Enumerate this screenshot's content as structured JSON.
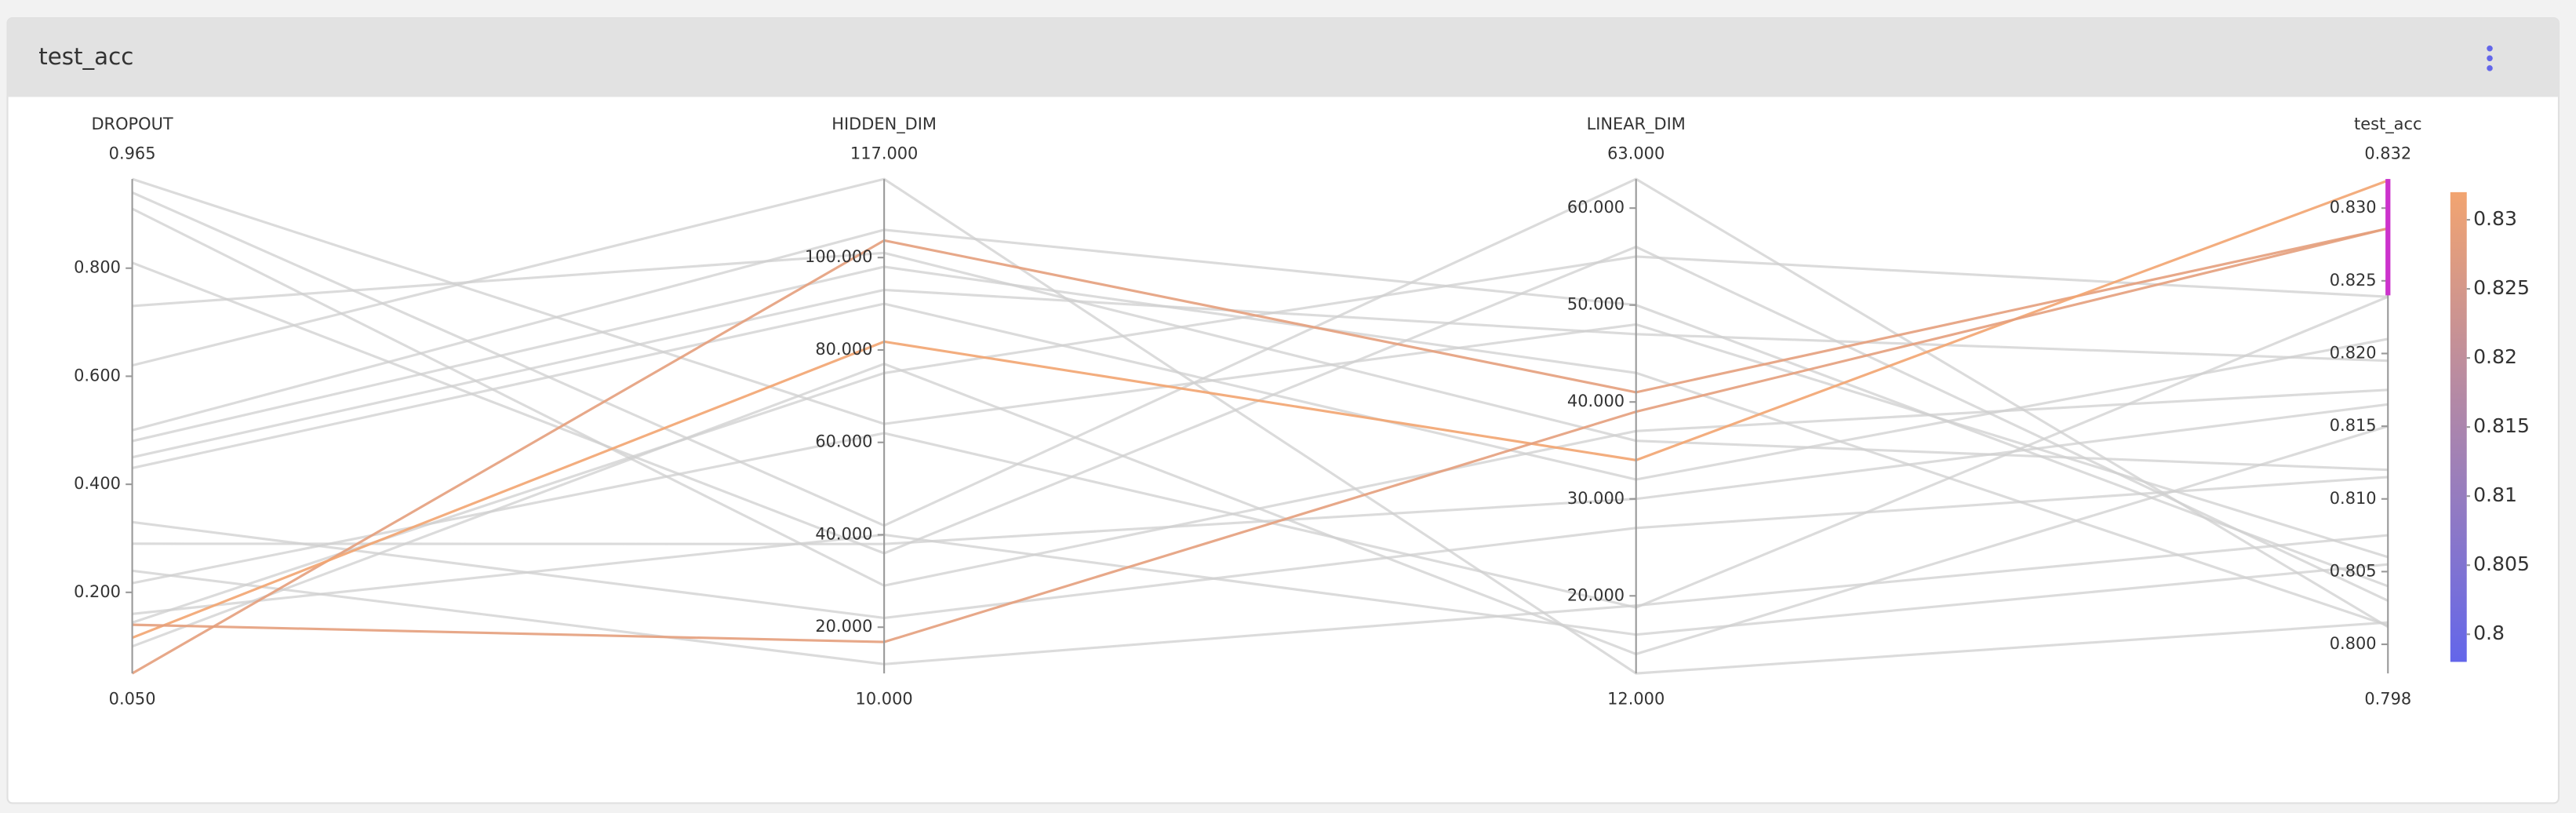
{
  "chart_data": {
    "type": "parallel_coordinates",
    "title": "test_acc",
    "axes": [
      {
        "name": "DROPOUT",
        "lim": [
          {
            "value": 0.05,
            "label": "0.050"
          },
          {
            "value": 0.965,
            "label": "0.965"
          }
        ],
        "ticks": [
          {
            "value": 0.2,
            "label": "0.200"
          },
          {
            "value": 0.4,
            "label": "0.400"
          },
          {
            "value": 0.6,
            "label": "0.600"
          },
          {
            "value": 0.8,
            "label": "0.800"
          }
        ]
      },
      {
        "name": "HIDDEN_DIM",
        "lim": [
          {
            "value": 10,
            "label": "10.000"
          },
          {
            "value": 117,
            "label": "117.000"
          }
        ],
        "ticks": [
          {
            "value": 20,
            "label": "20.000"
          },
          {
            "value": 40,
            "label": "40.000"
          },
          {
            "value": 60,
            "label": "60.000"
          },
          {
            "value": 80,
            "label": "80.000"
          },
          {
            "value": 100,
            "label": "100.000"
          }
        ]
      },
      {
        "name": "LINEAR_DIM",
        "lim": [
          {
            "value": 12,
            "label": "12.000"
          },
          {
            "value": 63,
            "label": "63.000"
          }
        ],
        "ticks": [
          {
            "value": 20,
            "label": "20.000"
          },
          {
            "value": 30,
            "label": "30.000"
          },
          {
            "value": 40,
            "label": "40.000"
          },
          {
            "value": 50,
            "label": "50.000"
          },
          {
            "value": 60,
            "label": "60.000"
          }
        ]
      },
      {
        "name": "test_acc",
        "lim": [
          {
            "value": 0.798,
            "label": "0.798"
          },
          {
            "value": 0.832,
            "label": "0.832"
          }
        ],
        "ticks": [
          {
            "value": 0.8,
            "label": "0.800"
          },
          {
            "value": 0.805,
            "label": "0.805"
          },
          {
            "value": 0.81,
            "label": "0.810"
          },
          {
            "value": 0.815,
            "label": "0.815"
          },
          {
            "value": 0.82,
            "label": "0.820"
          },
          {
            "value": 0.825,
            "label": "0.825"
          },
          {
            "value": 0.83,
            "label": "0.830"
          }
        ]
      }
    ],
    "runs": [
      {
        "values": [
          0.62,
          117,
          12,
          0.8015
        ]
      },
      {
        "values": [
          0.965,
          64,
          48,
          0.806
        ]
      },
      {
        "values": [
          0.94,
          42,
          63,
          0.8012
        ]
      },
      {
        "values": [
          0.91,
          29,
          37,
          0.8175
        ]
      },
      {
        "values": [
          0.81,
          36,
          56,
          0.803
        ]
      },
      {
        "values": [
          0.73,
          101,
          36,
          0.812
        ]
      },
      {
        "values": [
          0.5,
          106,
          50,
          0.804
        ]
      },
      {
        "values": [
          0.48,
          98,
          43,
          0.8013
        ]
      },
      {
        "values": [
          0.45,
          93,
          47,
          0.8195
        ]
      },
      {
        "values": [
          0.43,
          90,
          32,
          0.821
        ]
      },
      {
        "values": [
          0.33,
          22,
          27,
          0.8115
        ]
      },
      {
        "values": [
          0.29,
          38,
          30,
          0.8165
        ]
      },
      {
        "values": [
          0.24,
          12,
          19,
          0.8075
        ]
      },
      {
        "values": [
          0.16,
          40,
          16,
          0.8055
        ]
      },
      {
        "values": [
          0.1,
          77,
          14,
          0.815
        ]
      },
      {
        "values": [
          0.05,
          103.7,
          41,
          0.8286
        ]
      },
      {
        "values": [
          0.116,
          81.8,
          34,
          0.8319
        ]
      },
      {
        "values": [
          0.14,
          16.8,
          39,
          0.8286
        ]
      },
      {
        "values": [
          0.217,
          62,
          18.8,
          0.8239
        ]
      },
      {
        "values": [
          0.144,
          75,
          55,
          0.8239
        ]
      }
    ],
    "brush": {
      "axis": 3,
      "range": [
        0.824,
        0.832
      ]
    },
    "colorscale": {
      "colors": [
        "#6366ea",
        "#f2a470"
      ],
      "lim": [
        0.798,
        0.832
      ],
      "ticks": [
        0.8,
        0.805,
        0.81,
        0.815,
        0.82,
        0.825,
        0.83
      ]
    },
    "unselected_color": "#cfcfcf",
    "brush_color": "#cc33cc"
  }
}
